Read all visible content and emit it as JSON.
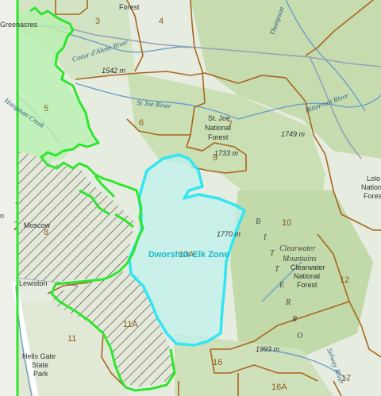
{
  "map": {
    "zone_label": "Dworshak Elk Zone",
    "unit_labels": [
      "3",
      "4",
      "5",
      "6",
      "7",
      "8",
      "9",
      "10",
      "10A",
      "11",
      "11A",
      "12",
      "16",
      "16A",
      "17"
    ],
    "place_labels": {
      "greenacres": "Greenacres",
      "moscow": "Moscow",
      "lewiston": "Lewiston",
      "forest_top": "Forest",
      "stjoe_1": "St. Joe",
      "stjoe_2": "National",
      "stjoe_3": "Forest",
      "clearwater_nf_1": "Clearwater",
      "clearwater_nf_2": "National",
      "clearwater_nf_3": "Forest",
      "lolo_1": "Lolo",
      "lolo_2": "National",
      "lolo_3": "Forest",
      "bells_gate_1": "Hells Gate",
      "bells_gate_2": "State",
      "bells_gate_3": "Park",
      "left_edge": "n"
    },
    "river_labels": {
      "coeur_dalene": "Coeur d'Alene River",
      "st_joe": "St Joe River",
      "hangman": "Hangman Creek",
      "bitterroot": "Bitterroot River",
      "thompson": "Thompson",
      "selway": "Selway River"
    },
    "region_labels": {
      "clearwater_mtns_1": "Clearwater",
      "clearwater_mtns_2": "Mountains",
      "bitterroot_letters": [
        "B",
        "I",
        "T",
        "T",
        "E",
        "R",
        "R",
        "O"
      ]
    },
    "elevations": [
      "1542 m",
      "1749 m",
      "1733 m",
      "1770 m",
      "1993 m"
    ],
    "colors": {
      "terrain": "#e8efe0",
      "forest": "#cfe0b8",
      "dense_forest": "#b9d3a0",
      "unit_boundary": "#a8661e",
      "zone_outline": "#33e6f2",
      "zone_fill": "#bff0ec",
      "green_boundary": "#2ee62e",
      "green_fill": "#b9f0b0",
      "road": "#9aa0b8",
      "river": "#6b9fc8"
    },
    "icons": [
      "hatch-pattern-icon"
    ]
  }
}
